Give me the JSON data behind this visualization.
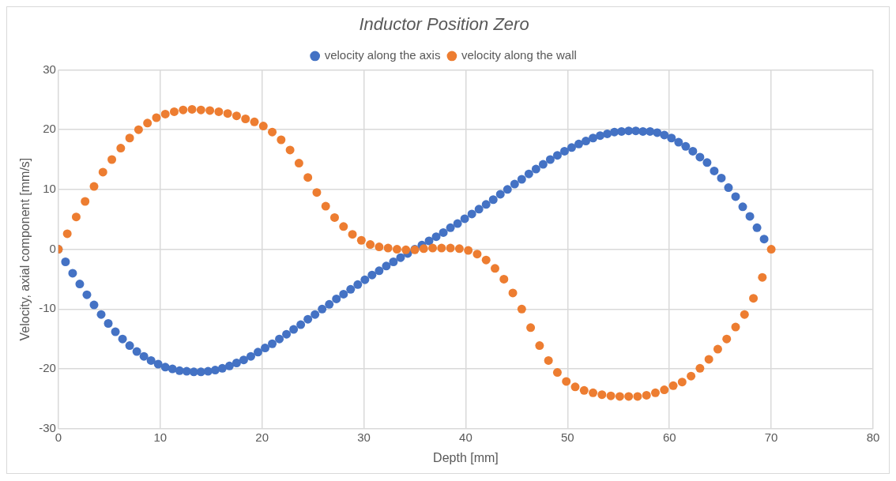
{
  "chart_data": {
    "type": "scatter",
    "title": "Inductor Position Zero",
    "xlabel": "Depth [mm]",
    "ylabel": "Velocity, axial component [mm/s]",
    "xlim": [
      0,
      80
    ],
    "xticks": [
      0,
      10,
      20,
      30,
      40,
      50,
      60,
      70,
      80
    ],
    "ylim": [
      -30,
      30
    ],
    "yticks": [
      -30,
      -20,
      -10,
      0,
      10,
      20,
      30
    ],
    "grid": true,
    "legend": "top",
    "marker": "circle",
    "series": [
      {
        "name": "velocity along the axis",
        "color": "#4472c4",
        "x": [
          0,
          0.7,
          1.4,
          2.1,
          2.8,
          3.5,
          4.2,
          4.9,
          5.6,
          6.3,
          7,
          7.7,
          8.4,
          9.1,
          9.8,
          10.5,
          11.2,
          11.9,
          12.6,
          13.3,
          14,
          14.7,
          15.4,
          16.1,
          16.8,
          17.5,
          18.2,
          18.9,
          19.6,
          20.3,
          21,
          21.7,
          22.4,
          23.1,
          23.8,
          24.5,
          25.2,
          25.9,
          26.6,
          27.3,
          28,
          28.7,
          29.4,
          30.1,
          30.8,
          31.5,
          32.2,
          32.9,
          33.6,
          34.3,
          35,
          35.7,
          36.4,
          37.1,
          37.8,
          38.5,
          39.2,
          39.9,
          40.6,
          41.3,
          42,
          42.7,
          43.4,
          44.1,
          44.8,
          45.5,
          46.2,
          46.9,
          47.6,
          48.3,
          49,
          49.7,
          50.4,
          51.1,
          51.8,
          52.5,
          53.2,
          53.9,
          54.6,
          55.3,
          56,
          56.7,
          57.4,
          58.1,
          58.8,
          59.5,
          60.2,
          60.9,
          61.6,
          62.3,
          63,
          63.7,
          64.4,
          65.1,
          65.8,
          66.5,
          67.2,
          67.9,
          68.6,
          69.3
        ],
        "values": [
          0,
          -2.1,
          -4,
          -5.8,
          -7.6,
          -9.3,
          -10.9,
          -12.4,
          -13.8,
          -15,
          -16.1,
          -17.1,
          -17.9,
          -18.6,
          -19.2,
          -19.7,
          -20,
          -20.3,
          -20.4,
          -20.5,
          -20.5,
          -20.4,
          -20.2,
          -19.9,
          -19.5,
          -19,
          -18.5,
          -17.9,
          -17.2,
          -16.5,
          -15.8,
          -15,
          -14.2,
          -13.4,
          -12.6,
          -11.7,
          -10.9,
          -10,
          -9.2,
          -8.3,
          -7.5,
          -6.7,
          -5.9,
          -5.1,
          -4.3,
          -3.6,
          -2.8,
          -2.1,
          -1.4,
          -0.7,
          0,
          0.7,
          1.4,
          2.1,
          2.8,
          3.6,
          4.3,
          5.1,
          5.9,
          6.7,
          7.5,
          8.3,
          9.2,
          10,
          10.9,
          11.7,
          12.6,
          13.4,
          14.2,
          15,
          15.7,
          16.4,
          17,
          17.6,
          18.1,
          18.6,
          19,
          19.3,
          19.6,
          19.7,
          19.8,
          19.8,
          19.7,
          19.7,
          19.5,
          19.1,
          18.6,
          17.9,
          17.2,
          16.4,
          15.4,
          14.5,
          13.1,
          11.9,
          10.3,
          8.8,
          7.1,
          5.5,
          3.6,
          1.7
        ]
      },
      {
        "name": "velocity along the wall",
        "color": "#ed7d31",
        "x": [
          0,
          0.875,
          1.75,
          2.625,
          3.5,
          4.375,
          5.25,
          6.125,
          7,
          7.875,
          8.75,
          9.625,
          10.5,
          11.375,
          12.25,
          13.125,
          14,
          14.875,
          15.75,
          16.625,
          17.5,
          18.375,
          19.25,
          20.125,
          21,
          21.875,
          22.75,
          23.625,
          24.5,
          25.375,
          26.25,
          27.125,
          28,
          28.875,
          29.75,
          30.625,
          31.5,
          32.375,
          33.25,
          34.125,
          35,
          35.875,
          36.75,
          37.625,
          38.5,
          39.375,
          40.25,
          41.125,
          42,
          42.875,
          43.75,
          44.625,
          45.5,
          46.375,
          47.25,
          48.125,
          49,
          49.875,
          50.75,
          51.625,
          52.5,
          53.375,
          54.25,
          55.125,
          56,
          56.875,
          57.75,
          58.625,
          59.5,
          60.375,
          61.25,
          62.125,
          63,
          63.875,
          64.75,
          65.625,
          66.5,
          67.375,
          68.25,
          69.125,
          70
        ],
        "values": [
          0,
          2.6,
          5.4,
          8,
          10.5,
          12.9,
          15,
          16.9,
          18.6,
          20,
          21.1,
          22,
          22.6,
          23,
          23.3,
          23.4,
          23.3,
          23.2,
          23,
          22.7,
          22.3,
          21.8,
          21.3,
          20.6,
          19.6,
          18.3,
          16.6,
          14.4,
          12,
          9.5,
          7.2,
          5.3,
          3.8,
          2.5,
          1.5,
          0.8,
          0.4,
          0.2,
          0,
          -0.1,
          -0.1,
          0.1,
          0.2,
          0.2,
          0.2,
          0.1,
          -0.2,
          -0.8,
          -1.8,
          -3.2,
          -5,
          -7.3,
          -10,
          -13.1,
          -16.1,
          -18.6,
          -20.6,
          -22.1,
          -23,
          -23.6,
          -24,
          -24.3,
          -24.5,
          -24.6,
          -24.6,
          -24.6,
          -24.4,
          -24,
          -23.5,
          -22.8,
          -22.2,
          -21.2,
          -19.9,
          -18.4,
          -16.7,
          -15,
          -13,
          -10.9,
          -8.2,
          -4.7,
          0
        ]
      }
    ]
  }
}
